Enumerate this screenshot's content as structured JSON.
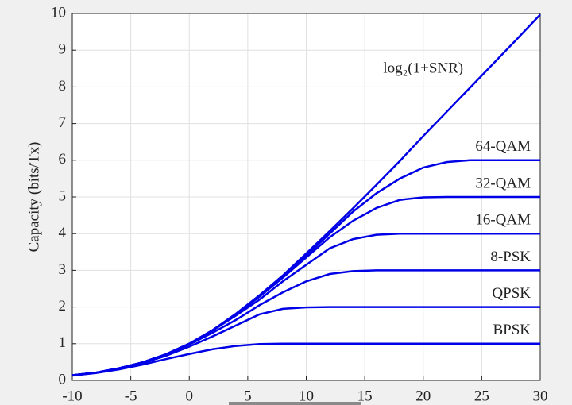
{
  "chart_data": {
    "type": "line",
    "ylabel": "Capacity (bits/Tx)",
    "x": [
      -10,
      -8,
      -6,
      -4,
      -2,
      0,
      2,
      4,
      6,
      8,
      10,
      12,
      14,
      16,
      18,
      20,
      22,
      24,
      26,
      28,
      30
    ],
    "series": [
      {
        "name": "log₂(1+SNR)",
        "color": "#0000e6",
        "values": [
          0.14,
          0.21,
          0.33,
          0.49,
          0.71,
          1.0,
          1.37,
          1.82,
          2.32,
          2.86,
          3.46,
          4.07,
          4.69,
          5.33,
          5.98,
          6.66,
          7.32,
          7.98,
          8.64,
          9.3,
          9.97
        ]
      },
      {
        "name": "64-QAM",
        "color": "#0000e6",
        "values": [
          0.14,
          0.21,
          0.33,
          0.49,
          0.71,
          1.0,
          1.37,
          1.8,
          2.3,
          2.83,
          3.4,
          4.0,
          4.6,
          5.1,
          5.5,
          5.8,
          5.95,
          6,
          6,
          6,
          6
        ]
      },
      {
        "name": "32-QAM",
        "color": "#0000e6",
        "values": [
          0.14,
          0.21,
          0.33,
          0.49,
          0.71,
          1.0,
          1.37,
          1.8,
          2.28,
          2.8,
          3.35,
          3.9,
          4.35,
          4.7,
          4.92,
          4.99,
          5,
          5,
          5,
          5,
          5
        ]
      },
      {
        "name": "16-QAM",
        "color": "#0000e6",
        "values": [
          0.14,
          0.21,
          0.33,
          0.49,
          0.71,
          1.0,
          1.36,
          1.77,
          2.2,
          2.7,
          3.15,
          3.6,
          3.85,
          3.97,
          4,
          4,
          4,
          4,
          4,
          4,
          4
        ]
      },
      {
        "name": "8-PSK",
        "color": "#0000e6",
        "values": [
          0.14,
          0.21,
          0.33,
          0.49,
          0.7,
          0.98,
          1.3,
          1.65,
          2.05,
          2.4,
          2.7,
          2.9,
          2.98,
          3,
          3,
          3,
          3,
          3,
          3,
          3,
          3
        ]
      },
      {
        "name": "QPSK",
        "color": "#0000e6",
        "values": [
          0.14,
          0.21,
          0.32,
          0.47,
          0.67,
          0.92,
          1.2,
          1.5,
          1.8,
          1.95,
          1.99,
          2,
          2,
          2,
          2,
          2,
          2,
          2,
          2,
          2,
          2
        ]
      },
      {
        "name": "BPSK",
        "color": "#0000e6",
        "values": [
          0.13,
          0.2,
          0.3,
          0.43,
          0.58,
          0.72,
          0.85,
          0.94,
          0.99,
          1,
          1,
          1,
          1,
          1,
          1,
          1,
          1,
          1,
          1,
          1,
          1
        ]
      }
    ],
    "xlim": [
      -10,
      30
    ],
    "xticks": [
      -10,
      -5,
      0,
      5,
      10,
      15,
      20,
      25,
      30
    ],
    "ylim": [
      0,
      10
    ],
    "yticks": [
      0,
      1,
      2,
      3,
      4,
      5,
      6,
      7,
      8,
      9,
      10
    ],
    "grid": true
  }
}
